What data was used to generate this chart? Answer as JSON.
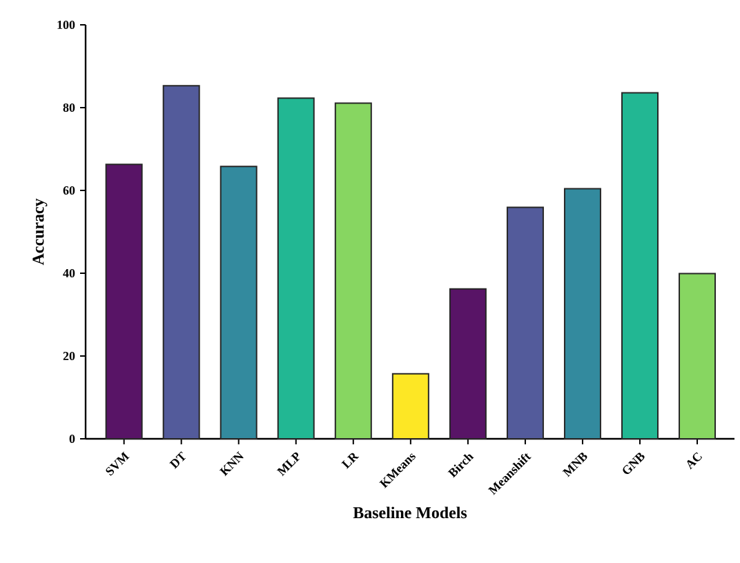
{
  "chart_data": {
    "type": "bar",
    "xlabel": "Baseline Models",
    "ylabel": "Accuracy",
    "categories": [
      "SVM",
      "DT",
      "KNN",
      "MLP",
      "LR",
      "KMeans",
      "Birch",
      "Meanshift",
      "MNB",
      "GNB",
      "AC"
    ],
    "values": [
      66.3,
      85.3,
      65.8,
      82.3,
      81.1,
      15.7,
      36.2,
      55.9,
      60.4,
      83.6,
      39.9
    ],
    "colors": [
      "#581466",
      "#535b9b",
      "#338a9e",
      "#22b793",
      "#87d661",
      "#fde725",
      "#581466",
      "#535b9b",
      "#338a9e",
      "#22b793",
      "#87d661"
    ],
    "ylim": [
      0,
      100
    ],
    "yticks": [
      0,
      20,
      40,
      60,
      80,
      100
    ]
  }
}
